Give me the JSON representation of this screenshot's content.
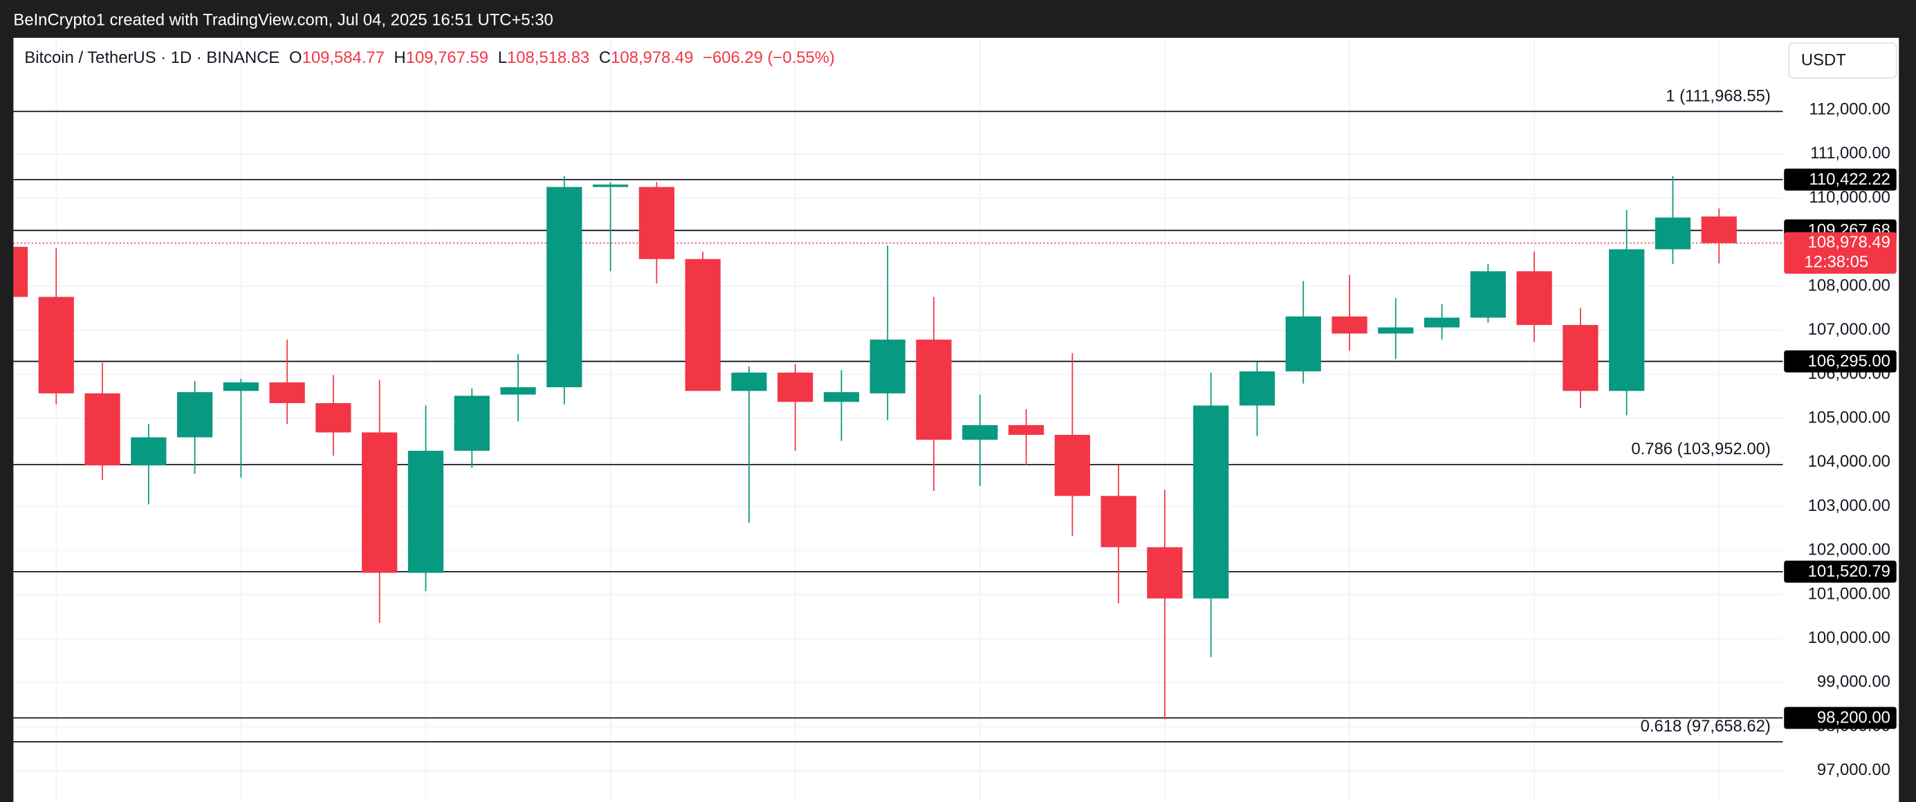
{
  "chart_data": {
    "type": "candlestick",
    "attribution": "BeInCrypto1 created with TradingView.com, Jul 04, 2025 16:51 UTC+5:30",
    "title": "Bitcoin / TetherUS · 1D · BINANCE",
    "legend": {
      "o_key": "O",
      "o": "109,584.77",
      "h_key": "H",
      "h": "109,767.59",
      "l_key": "L",
      "l": "108,518.83",
      "c_key": "C",
      "c": "108,978.49",
      "change": "−606.29 (−0.55%)"
    },
    "currency": "USDT",
    "up_color": "#089981",
    "down_color": "#f23645",
    "open": [
      108895,
      107759,
      105569,
      103933,
      104571,
      105624,
      105818,
      105347,
      104682,
      101494,
      104266,
      105541,
      105708,
      110254,
      110254,
      108618,
      105624,
      106040,
      105375,
      105569,
      106789,
      104516,
      104848,
      104627,
      103240,
      102076,
      100912,
      105292,
      106068,
      107315,
      106927,
      107066,
      107288,
      108341,
      107121,
      105624,
      108840,
      109584.77
    ],
    "high": [
      108950,
      108868,
      106262,
      104876,
      105846,
      105901,
      106789,
      105985,
      105874,
      105292,
      105680,
      106456,
      110503,
      110365,
      110365,
      108785,
      106179,
      106234,
      106096,
      108923,
      107759,
      105541,
      105209,
      106484,
      103933,
      103379,
      106040,
      106290,
      108119,
      108258,
      107731,
      107593,
      108507,
      108785,
      107509,
      109727,
      110503,
      109767.59
    ],
    "low": [
      107700,
      105319,
      103601,
      103046,
      103739,
      103656,
      104876,
      104155,
      100358,
      101078,
      103878,
      104931,
      105319,
      108341,
      108064,
      105624,
      102631,
      104266,
      104488,
      104959,
      103351,
      103462,
      103933,
      102326,
      100801,
      98168,
      99581,
      104599,
      105791,
      106539,
      106345,
      106789,
      107177,
      106733,
      105236,
      105070,
      108507,
      108518.83
    ],
    "close": [
      107758,
      105569,
      103933,
      104571,
      105597,
      105818,
      105347,
      104682,
      101494,
      104266,
      105514,
      105708,
      110254,
      110310,
      108618,
      105624,
      106040,
      105375,
      105597,
      106789,
      104516,
      104848,
      104627,
      103240,
      102076,
      100912,
      105292,
      106068,
      107315,
      106927,
      107066,
      107288,
      108341,
      107121,
      105624,
      108840,
      109561,
      108978.49
    ],
    "ylim": [
      96280,
      113640
    ],
    "yticks": [
      {
        "value": 97000,
        "label": "97,000.00"
      },
      {
        "value": 98000,
        "label": "98,000.00"
      },
      {
        "value": 99000,
        "label": "99,000.00"
      },
      {
        "value": 100000,
        "label": "100,000.00"
      },
      {
        "value": 101000,
        "label": "101,000.00"
      },
      {
        "value": 102000,
        "label": "102,000.00"
      },
      {
        "value": 103000,
        "label": "103,000.00"
      },
      {
        "value": 104000,
        "label": "104,000.00"
      },
      {
        "value": 105000,
        "label": "105,000.00"
      },
      {
        "value": 106000,
        "label": "106,000.00"
      },
      {
        "value": 107000,
        "label": "107,000.00"
      },
      {
        "value": 108000,
        "label": "108,000.00"
      },
      {
        "value": 109000,
        "label": "109,000.00"
      },
      {
        "value": 110000,
        "label": "110,000.00"
      },
      {
        "value": 111000,
        "label": "111,000.00"
      },
      {
        "value": 112000,
        "label": "112,000.00"
      }
    ],
    "grid": true,
    "fib_levels": [
      {
        "value": 111968.55,
        "label": "1 (111,968.55)"
      },
      {
        "value": 103952,
        "label": "0.786 (103,952.00)"
      },
      {
        "value": 97658.62,
        "label": "0.618 (97,658.62)"
      }
    ],
    "price_levels": [
      {
        "value": 110422.22,
        "label": "110,422.22"
      },
      {
        "value": 109267.68,
        "label": "109,267.68"
      },
      {
        "value": 106295,
        "label": "106,295.00"
      },
      {
        "value": 101520.79,
        "label": "101,520.79"
      },
      {
        "value": 98200,
        "label": "98,200.00"
      }
    ],
    "last_price": {
      "value": 108978.49,
      "label": "108,978.49",
      "countdown": "12:38:05"
    }
  }
}
